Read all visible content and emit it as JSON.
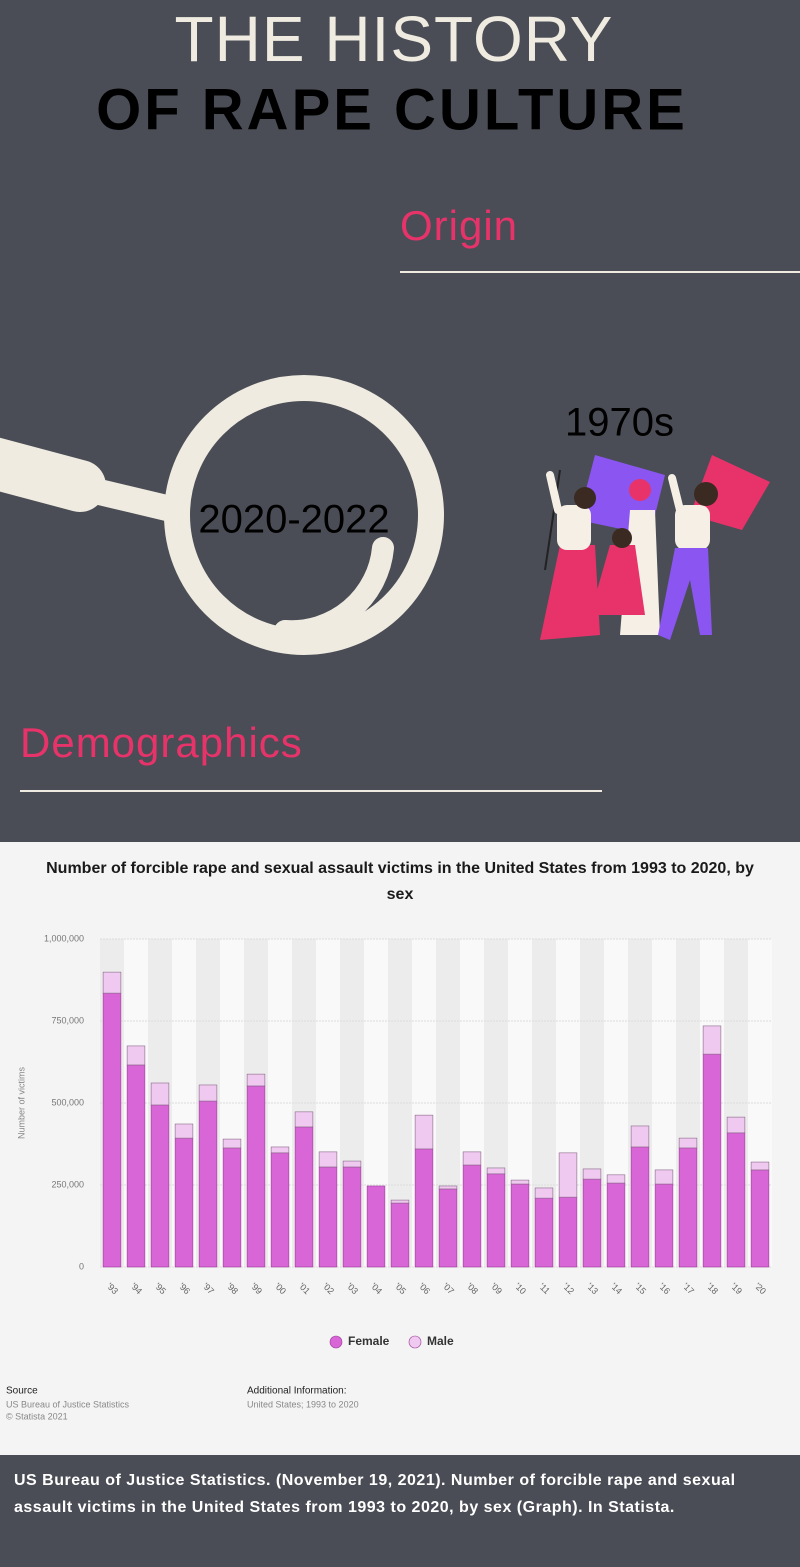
{
  "header": {
    "title_line1": "THE HISTORY",
    "title_line2": "OF RAPE CULTURE"
  },
  "sections": {
    "origin": "Origin",
    "era": "1970s",
    "period": "2020-2022",
    "demographics": "Demographics"
  },
  "chart_data": {
    "type": "bar",
    "stacked": true,
    "title": "Number of forcible rape and sexual assault victims in the United States from 1993 to 2020, by sex",
    "y_label": "Number of victims",
    "categories": [
      "'93",
      "'94",
      "'95",
      "'96",
      "'97",
      "'98",
      "'99",
      "'00",
      "'01",
      "'02",
      "'03",
      "'04",
      "'05",
      "'06",
      "'07",
      "'08",
      "'09",
      "'10",
      "'11",
      "'12",
      "'13",
      "'14",
      "'15",
      "'16",
      "'17",
      "'18",
      "'19",
      "'20"
    ],
    "series": [
      {
        "name": "Female",
        "color": "#d966d6",
        "values": [
          835000,
          616000,
          494000,
          393000,
          506000,
          363000,
          552000,
          348000,
          427000,
          305000,
          305000,
          247000,
          195000,
          360000,
          238000,
          311000,
          284000,
          253000,
          210000,
          213000,
          268000,
          256000,
          366000,
          253000,
          363000,
          649000,
          409000,
          296000
        ]
      },
      {
        "name": "Male",
        "color": "#efc9ef",
        "values": [
          64000,
          58000,
          67000,
          43000,
          49000,
          27000,
          36000,
          18000,
          46000,
          46000,
          18000,
          0,
          9000,
          103000,
          9000,
          40000,
          18000,
          12000,
          31000,
          135000,
          31000,
          25000,
          64000,
          43000,
          30000,
          86000,
          48000,
          24000
        ]
      }
    ],
    "ylim": [
      0,
      1000000
    ],
    "yticks": [
      {
        "value": 0,
        "label": "0"
      },
      {
        "value": 250000,
        "label": "250,000"
      },
      {
        "value": 500000,
        "label": "500,000"
      },
      {
        "value": 750000,
        "label": "750,000"
      },
      {
        "value": 1000000,
        "label": "1,000,000"
      }
    ],
    "grid": true,
    "legend": "bottom"
  },
  "source": {
    "heading": "Source",
    "lines": [
      "US Bureau of Justice Statistics",
      "© Statista 2021"
    ]
  },
  "additional": {
    "heading": "Additional Information:",
    "text": "United States; 1993 to 2020"
  },
  "citation": "US Bureau of Justice Statistics. (November 19, 2021). Number of forcible rape and sexual assault victims in the United States from 1993 to 2020, by sex (Graph). In Statista."
}
